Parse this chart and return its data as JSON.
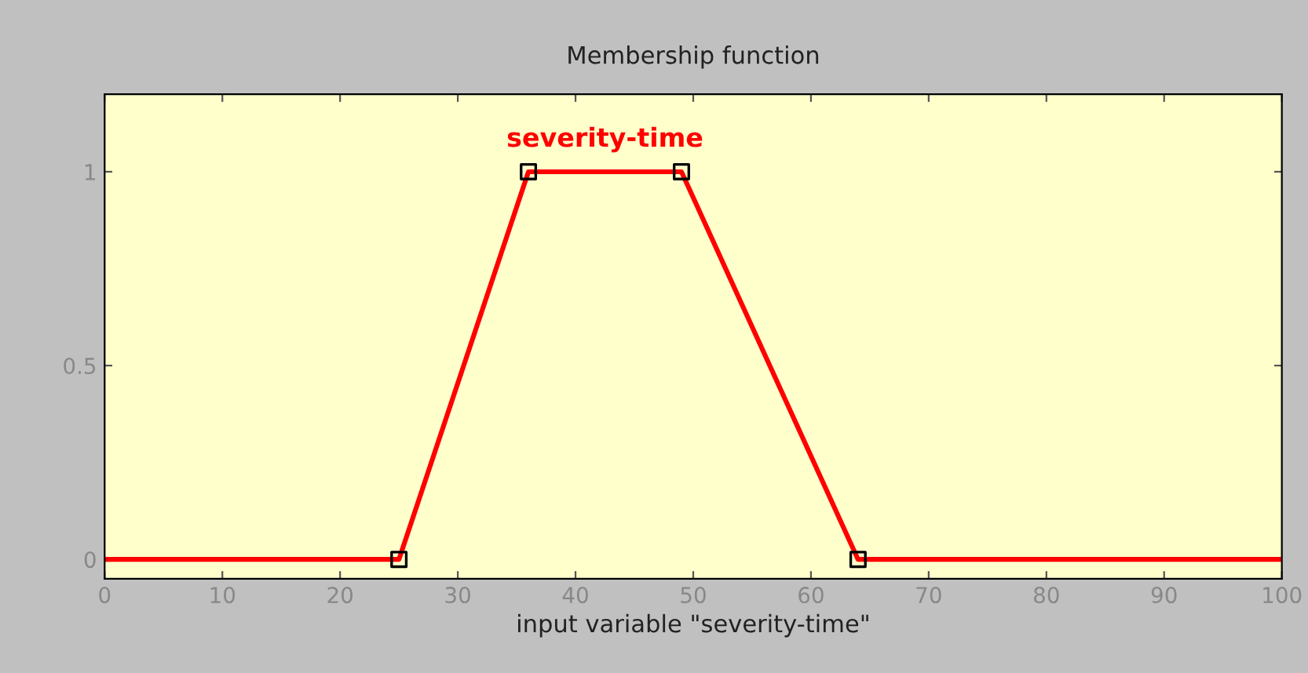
{
  "chart_data": {
    "type": "line",
    "title": "Membership function",
    "xlabel": "input variable \"severity-time\"",
    "series": [
      {
        "name": "severity-time",
        "color": "#ff0000",
        "x": [
          0,
          25,
          36,
          49,
          64,
          100
        ],
        "values": [
          0,
          0,
          1,
          1,
          0,
          0
        ],
        "marker": "none"
      },
      {
        "type": "scatter",
        "color": "#000000",
        "x": [
          25,
          36,
          49,
          64
        ],
        "values": [
          0,
          1,
          1,
          0
        ],
        "marker": "square"
      }
    ],
    "xlim": [
      0,
      100
    ],
    "ylim": [
      -0.05,
      1.2
    ],
    "xticks": [
      0,
      10,
      20,
      30,
      40,
      50,
      60,
      70,
      80,
      90,
      100
    ],
    "yticks": [
      0,
      0.5,
      1
    ],
    "grid": false,
    "legend": false
  }
}
